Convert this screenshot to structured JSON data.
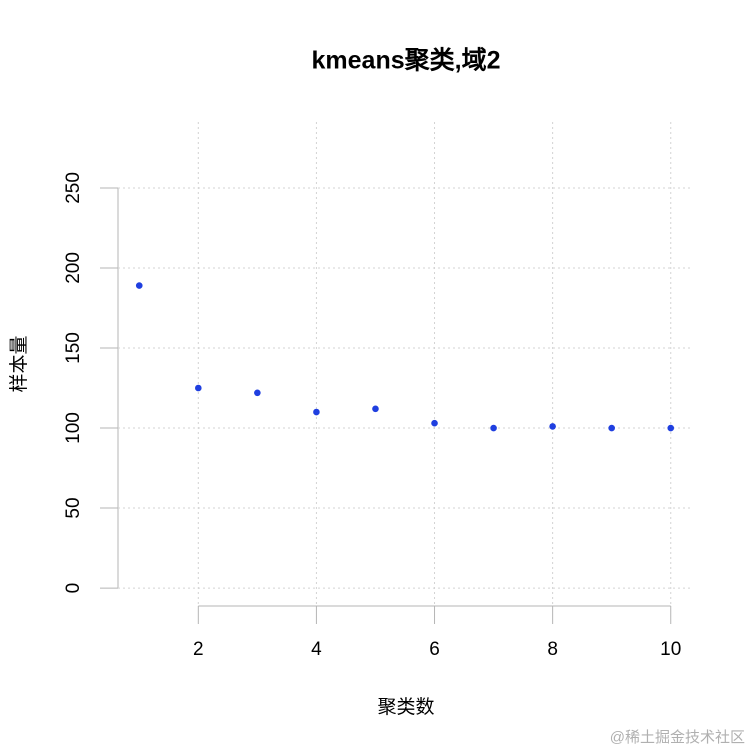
{
  "chart_data": {
    "type": "scatter",
    "title": "kmeans聚类,域2",
    "x_label": "聚类数",
    "y_label": "样本量",
    "x": [
      1,
      2,
      3,
      4,
      5,
      6,
      7,
      8,
      9,
      10
    ],
    "series": [
      {
        "color": "#1f3fe0",
        "values": [
          189,
          125,
          122,
          110,
          112,
          103,
          100,
          101,
          100,
          100
        ]
      }
    ],
    "xlim": [
      0.64,
      10.36
    ],
    "xticks": [
      2,
      4,
      6,
      8,
      10
    ],
    "ylim": [
      -11.2,
      291.2
    ],
    "yticks": [
      0,
      50,
      100,
      150,
      200,
      250
    ],
    "grid": true
  },
  "watermark": "@稀土掘金技术社区"
}
